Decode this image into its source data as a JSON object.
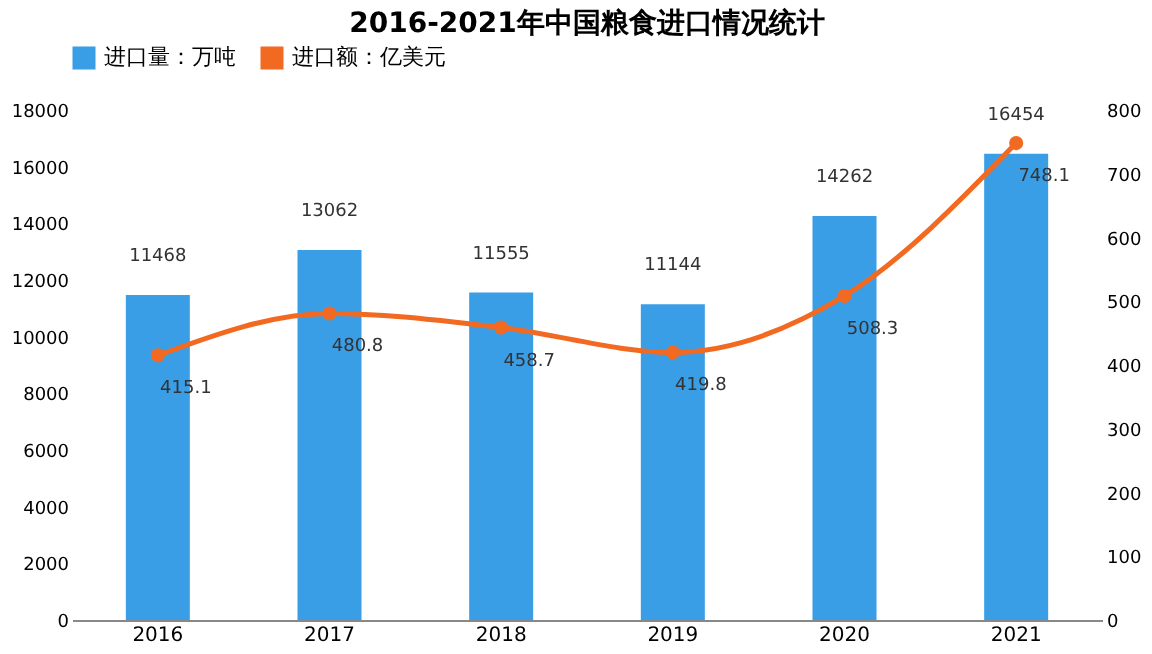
{
  "chart_data": {
    "type": "bar",
    "title": "2016-2021年中国粮食进口情况统计",
    "categories": [
      "2016",
      "2017",
      "2018",
      "2019",
      "2020",
      "2021"
    ],
    "series": [
      {
        "name": "进口量：万吨",
        "color": "#3a9ee6",
        "values": [
          11468,
          13062,
          11555,
          11144,
          14262,
          16454
        ]
      },
      {
        "name": "进口额：亿美元",
        "type": "line",
        "axis": "y2",
        "color": "#f26a21",
        "values": [
          415.1,
          480.8,
          458.7,
          419.8,
          508.3,
          748.1
        ]
      }
    ],
    "ylim": [
      0,
      18000
    ],
    "yticks": [
      0,
      2000,
      4000,
      6000,
      8000,
      10000,
      12000,
      14000,
      16000,
      18000
    ],
    "y2lim": [
      0,
      800
    ],
    "y2ticks": [
      0,
      100,
      200,
      300,
      400,
      500,
      600,
      700,
      800
    ],
    "data_labels": true,
    "legend": "top",
    "marker": "circle",
    "line_style": "solid",
    "grid": false
  }
}
